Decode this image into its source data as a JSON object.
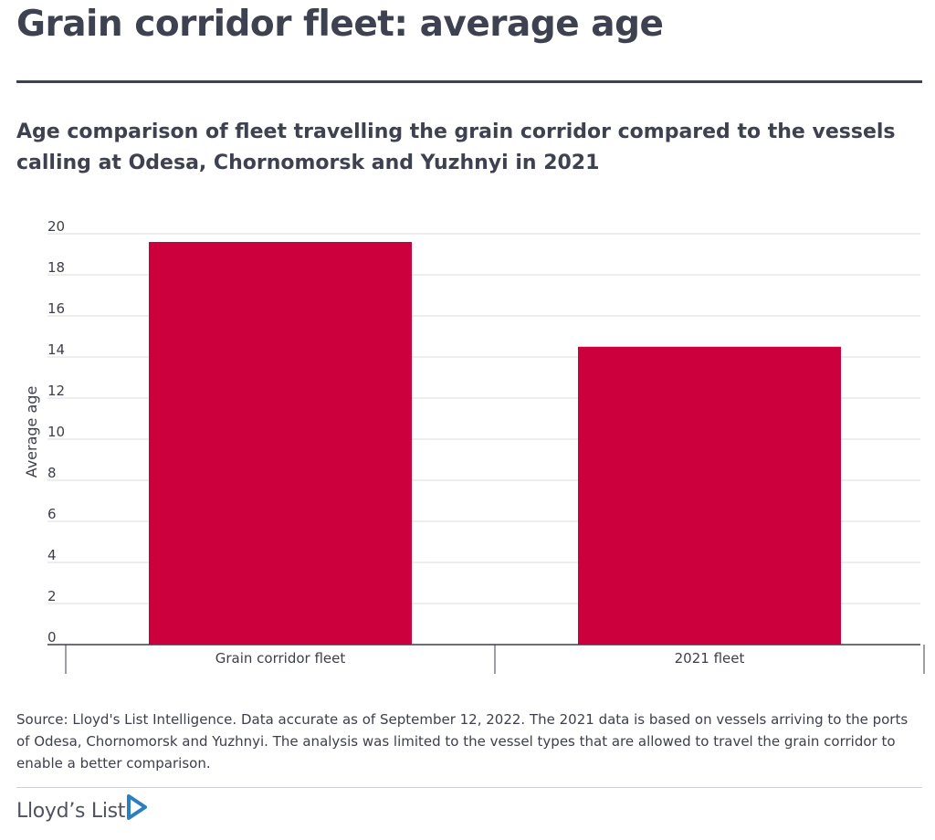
{
  "header": {
    "title": "Grain corridor fleet: average age",
    "subtitle": "Age comparison of fleet travelling the grain corridor compared to the vessels calling at Odesa, Chornomorsk and Yuzhnyi in 2021"
  },
  "chart_data": {
    "type": "bar",
    "categories": [
      "Grain corridor fleet",
      "2021 fleet"
    ],
    "values": [
      19.6,
      14.5
    ],
    "ylabel": "Average age",
    "xlabel": "",
    "ylim": [
      0,
      20
    ],
    "yticks": [
      0,
      2,
      4,
      6,
      8,
      10,
      12,
      14,
      16,
      18,
      20
    ],
    "grid": true,
    "legend": "none",
    "bar_color": "#cc003d"
  },
  "footer": {
    "source": "Source: Lloyd's List Intelligence. Data accurate as of September 12, 2022. The 2021 data is based on vessels arriving to the ports of Odesa, Chornomorsk and Yuzhnyi. The analysis was limited to the vessel types that are allowed to travel the grain corridor to enable a better comparison.",
    "brand": "Lloyd’s List",
    "brand_color": "#2a7fc1",
    "logo_icon": "play-arrow-icon"
  }
}
